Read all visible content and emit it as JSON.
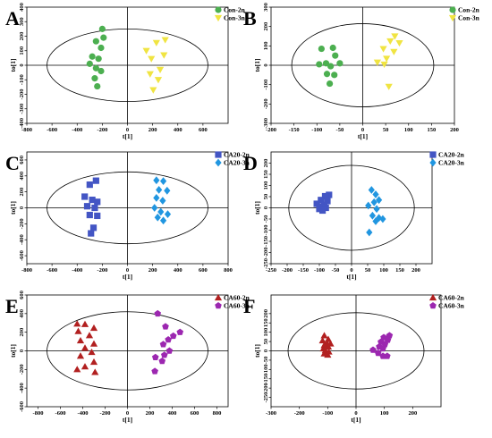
{
  "chart_data": [
    {
      "panel": "A",
      "type": "scatter",
      "xlabel": "t[1]",
      "ylabel": "to[1]",
      "xlim": [
        -800,
        800
      ],
      "ylim": [
        -400,
        400
      ],
      "xticks": [
        -800,
        -600,
        -400,
        -200,
        0,
        200,
        400,
        600
      ],
      "yticks": [
        -400,
        -300,
        -200,
        -100,
        0,
        100,
        200,
        300,
        400
      ],
      "ellipse": {
        "rx": 640,
        "ry": 250
      },
      "legend_position": "top-right",
      "series": [
        {
          "name": "Con-2n",
          "color": "#4caf50",
          "marker": "circle",
          "points": [
            [
              -200,
              250
            ],
            [
              -190,
              190
            ],
            [
              -250,
              165
            ],
            [
              -210,
              120
            ],
            [
              -280,
              60
            ],
            [
              -230,
              45
            ],
            [
              -300,
              10
            ],
            [
              -250,
              -20
            ],
            [
              -210,
              -40
            ],
            [
              -260,
              -90
            ],
            [
              -240,
              -145
            ]
          ]
        },
        {
          "name": "Con-3n",
          "color": "#f0e442",
          "marker": "triangle-down",
          "points": [
            [
              300,
              175
            ],
            [
              230,
              155
            ],
            [
              150,
              100
            ],
            [
              290,
              70
            ],
            [
              190,
              45
            ],
            [
              260,
              -30
            ],
            [
              180,
              -60
            ],
            [
              245,
              -100
            ],
            [
              205,
              -170
            ]
          ]
        }
      ]
    },
    {
      "panel": "B",
      "type": "scatter",
      "xlabel": "t[1]",
      "ylabel": "to[1]",
      "xlim": [
        -200,
        200
      ],
      "ylim": [
        -300,
        300
      ],
      "xticks": [
        -200,
        -150,
        -100,
        -50,
        0,
        50,
        100,
        150,
        200
      ],
      "yticks": [
        -300,
        -200,
        -100,
        0,
        100,
        200,
        300
      ],
      "ellipse": {
        "rx": 155,
        "ry": 215
      },
      "legend_position": "top-right",
      "series": [
        {
          "name": "Con-2n",
          "color": "#4caf50",
          "marker": "circle",
          "points": [
            [
              -65,
              90
            ],
            [
              -90,
              85
            ],
            [
              -60,
              50
            ],
            [
              -80,
              10
            ],
            [
              -95,
              5
            ],
            [
              -70,
              -5
            ],
            [
              -50,
              10
            ],
            [
              -78,
              -45
            ],
            [
              -62,
              -50
            ],
            [
              -72,
              -95
            ]
          ]
        },
        {
          "name": "Con-3n",
          "color": "#f0e442",
          "marker": "triangle-down",
          "points": [
            [
              70,
              150
            ],
            [
              60,
              125
            ],
            [
              80,
              115
            ],
            [
              45,
              85
            ],
            [
              68,
              70
            ],
            [
              52,
              35
            ],
            [
              32,
              15
            ],
            [
              47,
              5
            ],
            [
              57,
              -110
            ]
          ]
        }
      ]
    },
    {
      "panel": "C",
      "type": "scatter",
      "xlabel": "t[1]",
      "ylabel": "to[1]",
      "xlim": [
        -800,
        800
      ],
      "ylim": [
        -700,
        700
      ],
      "xticks": [
        -800,
        -600,
        -400,
        -200,
        0,
        200,
        400,
        600,
        800
      ],
      "yticks": [
        -600,
        -400,
        -200,
        0,
        200,
        400,
        600
      ],
      "ellipse": {
        "rx": 640,
        "ry": 450
      },
      "legend_position": "top-right",
      "series": [
        {
          "name": "CA20-2n",
          "color": "#4355c4",
          "marker": "square",
          "points": [
            [
              -250,
              340
            ],
            [
              -300,
              290
            ],
            [
              -340,
              140
            ],
            [
              -280,
              100
            ],
            [
              -240,
              75
            ],
            [
              -320,
              20
            ],
            [
              -260,
              0
            ],
            [
              -300,
              -90
            ],
            [
              -240,
              -100
            ],
            [
              -270,
              -250
            ],
            [
              -290,
              -320
            ]
          ]
        },
        {
          "name": "CA20-3n",
          "color": "#2196e0",
          "marker": "diamond",
          "points": [
            [
              230,
              345
            ],
            [
              285,
              335
            ],
            [
              250,
              225
            ],
            [
              315,
              215
            ],
            [
              230,
              125
            ],
            [
              280,
              90
            ],
            [
              215,
              0
            ],
            [
              265,
              -50
            ],
            [
              320,
              -80
            ],
            [
              240,
              -120
            ],
            [
              285,
              -160
            ]
          ]
        }
      ]
    },
    {
      "panel": "D",
      "type": "scatter",
      "xlabel": "t[1]",
      "ylabel": "to[1]",
      "xlim": [
        -250,
        250
      ],
      "ylim": [
        -250,
        250
      ],
      "xticks": [
        -250,
        -200,
        -150,
        -100,
        -50,
        0,
        50,
        100,
        150,
        200
      ],
      "yticks": [
        -250,
        -200,
        -150,
        -100,
        -50,
        0,
        50,
        100,
        150,
        200
      ],
      "ellipse": {
        "rx": 195,
        "ry": 190
      },
      "legend_position": "top-right",
      "series": [
        {
          "name": "CA20-2n",
          "color": "#4355c4",
          "marker": "square",
          "points": [
            [
              -70,
              58
            ],
            [
              -82,
              52
            ],
            [
              -95,
              35
            ],
            [
              -75,
              30
            ],
            [
              -108,
              18
            ],
            [
              -85,
              12
            ],
            [
              -95,
              5
            ],
            [
              -80,
              0
            ],
            [
              -100,
              -5
            ],
            [
              -90,
              -12
            ]
          ]
        },
        {
          "name": "CA20-3n",
          "color": "#2196e0",
          "marker": "diamond",
          "points": [
            [
              62,
              80
            ],
            [
              75,
              60
            ],
            [
              85,
              35
            ],
            [
              70,
              25
            ],
            [
              52,
              10
            ],
            [
              78,
              -5
            ],
            [
              65,
              -35
            ],
            [
              85,
              -45
            ],
            [
              97,
              -50
            ],
            [
              75,
              -60
            ],
            [
              55,
              -110
            ]
          ]
        }
      ]
    },
    {
      "panel": "E",
      "type": "scatter",
      "xlabel": "t[1]",
      "ylabel": "to[1]",
      "xlim": [
        -900,
        900
      ],
      "ylim": [
        -600,
        600
      ],
      "xticks": [
        -800,
        -600,
        -400,
        -200,
        0,
        200,
        400,
        600,
        800
      ],
      "yticks": [
        -600,
        -400,
        -200,
        0,
        200,
        400,
        600
      ],
      "ellipse": {
        "rx": 720,
        "ry": 420
      },
      "legend_position": "top-right",
      "series": [
        {
          "name": "CA60-2n",
          "color": "#b22020",
          "marker": "triangle-up",
          "points": [
            [
              -450,
              290
            ],
            [
              -380,
              285
            ],
            [
              -300,
              245
            ],
            [
              -440,
              210
            ],
            [
              -340,
              165
            ],
            [
              -420,
              110
            ],
            [
              -300,
              75
            ],
            [
              -380,
              30
            ],
            [
              -320,
              -15
            ],
            [
              -420,
              -55
            ],
            [
              -300,
              -120
            ],
            [
              -380,
              -170
            ],
            [
              -290,
              -230
            ],
            [
              -450,
              -200
            ]
          ]
        },
        {
          "name": "CA60-3n",
          "color": "#9c27b0",
          "marker": "pentagon",
          "points": [
            [
              270,
              400
            ],
            [
              340,
              260
            ],
            [
              470,
              200
            ],
            [
              410,
              160
            ],
            [
              365,
              120
            ],
            [
              320,
              70
            ],
            [
              375,
              0
            ],
            [
              330,
              -45
            ],
            [
              250,
              -70
            ],
            [
              310,
              -110
            ],
            [
              245,
              -220
            ]
          ]
        }
      ]
    },
    {
      "panel": "F",
      "type": "scatter",
      "xlabel": "t[1]",
      "ylabel": "to[1]",
      "xlim": [
        -300,
        300
      ],
      "ylim": [
        -300,
        300
      ],
      "xticks": [
        -300,
        -200,
        -100,
        0,
        100,
        200
      ],
      "yticks": [
        -250,
        -200,
        -150,
        -100,
        -50,
        0,
        50,
        100,
        150,
        200
      ],
      "ellipse": {
        "rx": 240,
        "ry": 205
      },
      "legend_position": "top-right",
      "series": [
        {
          "name": "CA60-2n",
          "color": "#b22020",
          "marker": "triangle-up",
          "points": [
            [
              -112,
              82
            ],
            [
              -98,
              62
            ],
            [
              -118,
              55
            ],
            [
              -102,
              40
            ],
            [
              -90,
              38
            ],
            [
              -112,
              30
            ],
            [
              -98,
              22
            ],
            [
              -115,
              12
            ],
            [
              -108,
              2
            ],
            [
              -96,
              -5
            ],
            [
              -112,
              -15
            ],
            [
              -100,
              -22
            ]
          ]
        },
        {
          "name": "CA60-3n",
          "color": "#9c27b0",
          "marker": "pentagon",
          "points": [
            [
              118,
              82
            ],
            [
              98,
              72
            ],
            [
              112,
              58
            ],
            [
              88,
              48
            ],
            [
              102,
              35
            ],
            [
              82,
              22
            ],
            [
              95,
              12
            ],
            [
              60,
              5
            ],
            [
              78,
              -12
            ],
            [
              95,
              -28
            ],
            [
              110,
              -28
            ]
          ]
        }
      ]
    }
  ]
}
